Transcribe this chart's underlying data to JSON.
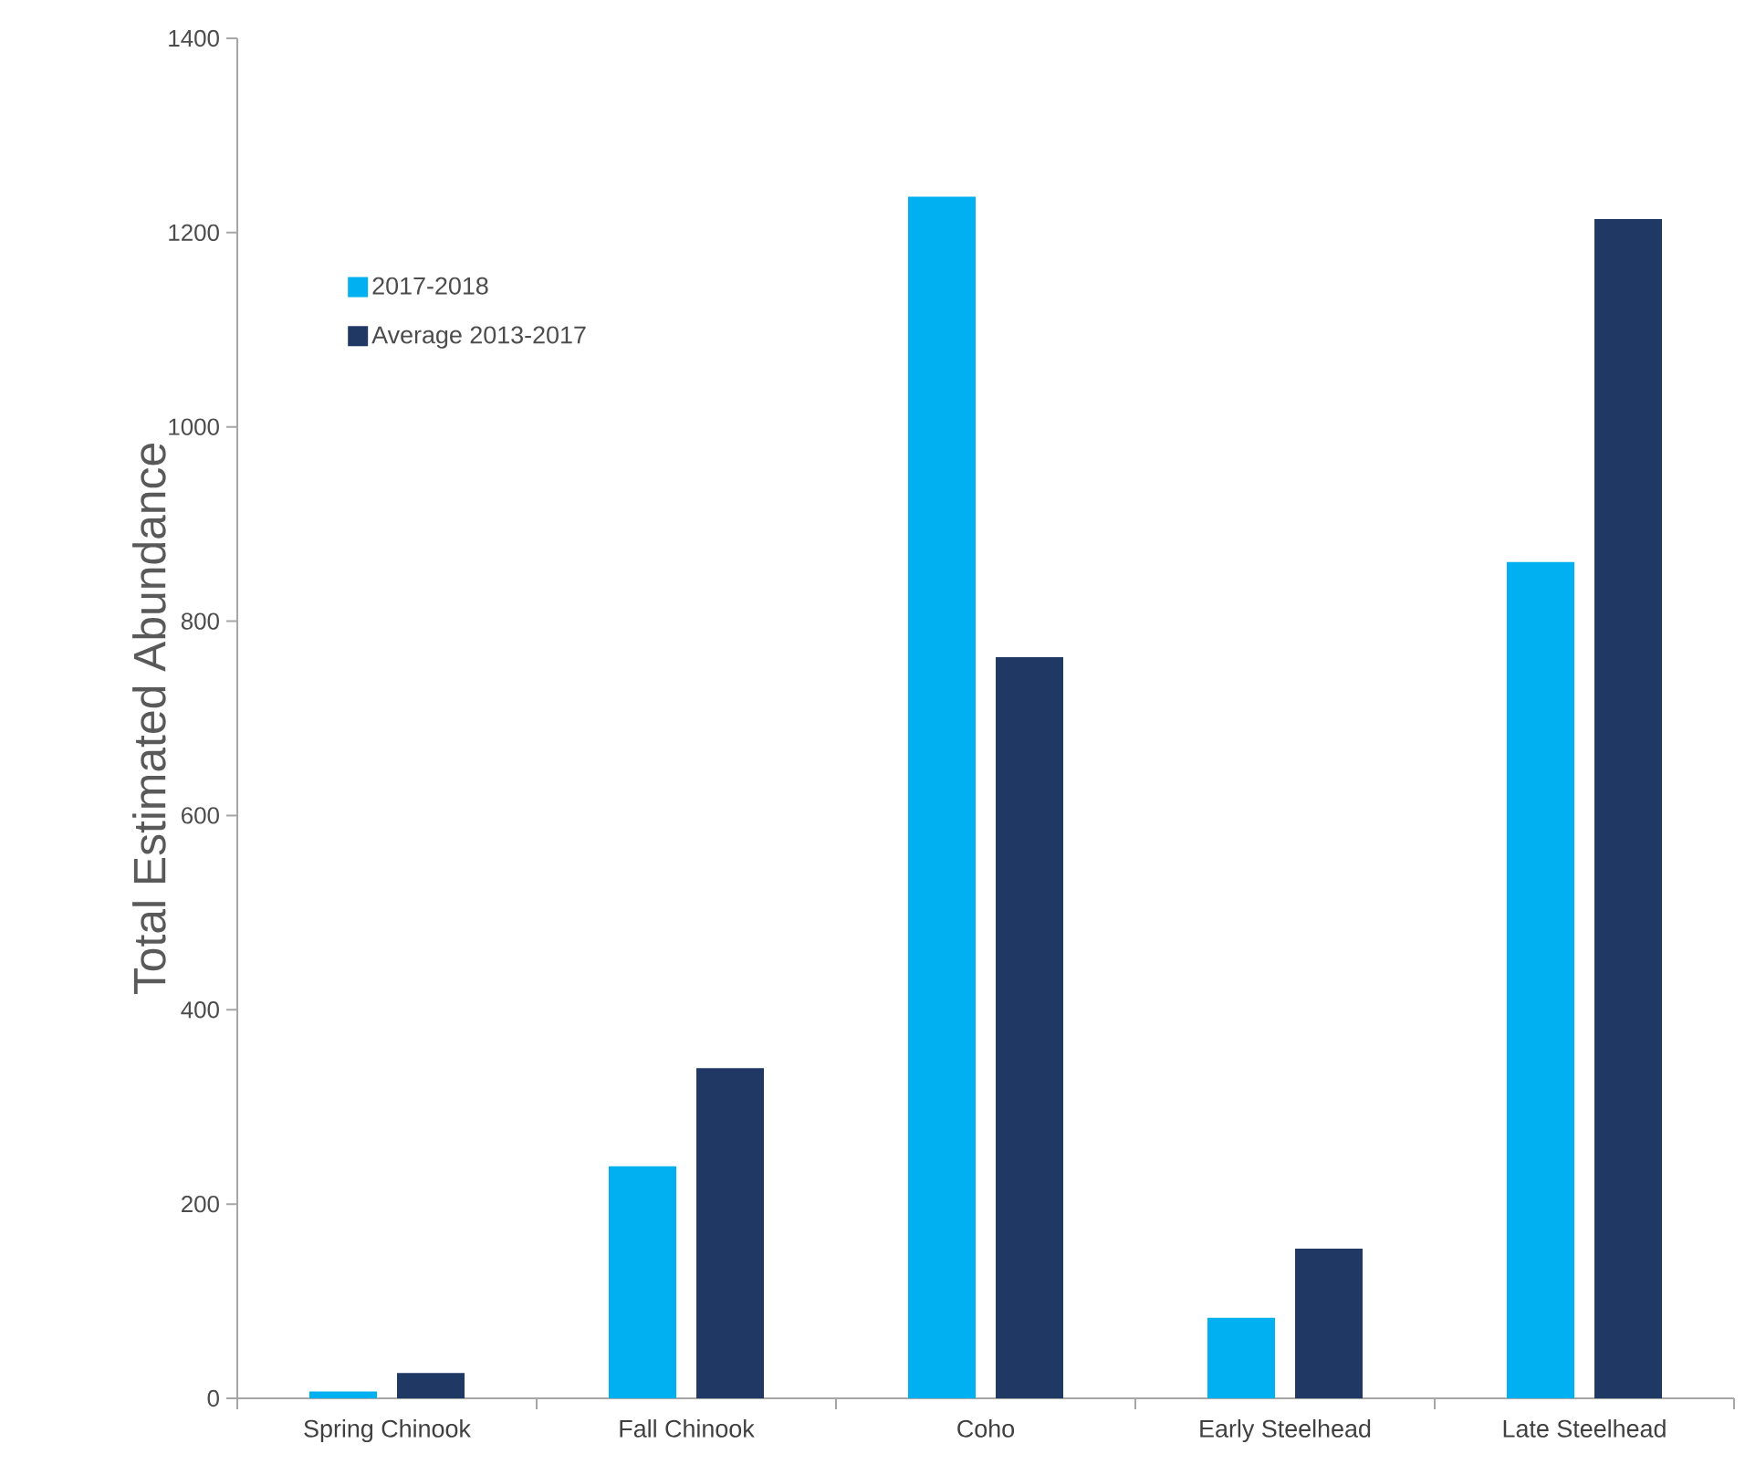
{
  "chart_data": {
    "type": "bar",
    "ylabel": "Total Estimated Abundance",
    "categories": [
      "Spring Chinook",
      "Fall Chinook",
      "Coho",
      "Early Steelhead",
      "Late Steelhead"
    ],
    "series": [
      {
        "name": "2017-2018",
        "color": "#00b0f0",
        "values": [
          7,
          239,
          1237,
          83,
          861
        ]
      },
      {
        "name": "Average 2013-2017",
        "color": "#203864",
        "values": [
          26,
          340,
          763,
          154,
          1214
        ]
      }
    ],
    "ylim": [
      0,
      1400
    ],
    "yticks": [
      0,
      200,
      400,
      600,
      800,
      1000,
      1200,
      1400
    ],
    "grid": false,
    "legend": "top left"
  }
}
